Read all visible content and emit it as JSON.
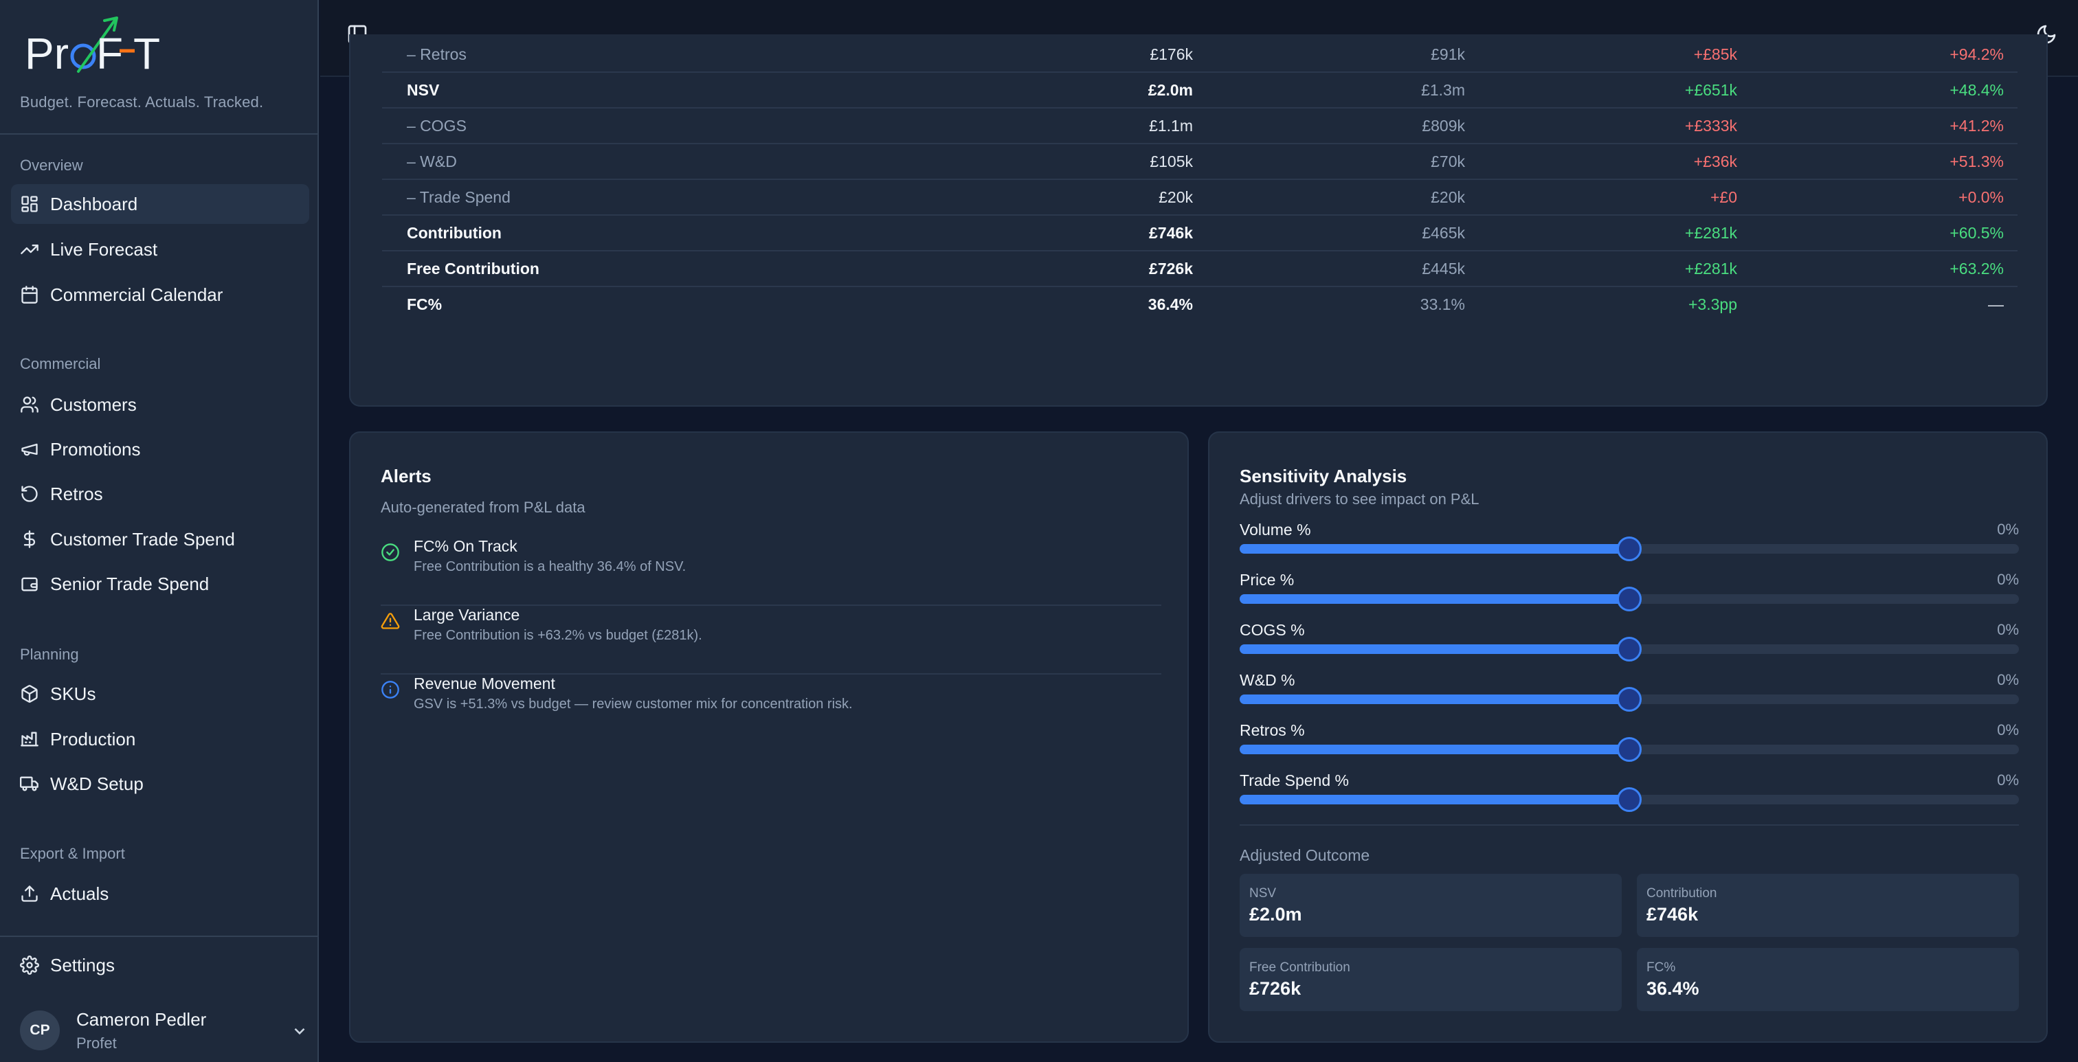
{
  "brand": {
    "tagline": "Budget. Forecast. Actuals. Tracked.",
    "colors": {
      "accent": "#3b82f6",
      "green": "#4ade80",
      "red": "#f87171",
      "orange": "#f59e0b"
    }
  },
  "sidebar": {
    "sections": [
      {
        "title": "Overview",
        "items": [
          {
            "label": "Dashboard",
            "icon": "dashboard-icon",
            "active": true
          },
          {
            "label": "Live Forecast",
            "icon": "trending-up-icon"
          },
          {
            "label": "Commercial Calendar",
            "icon": "calendar-icon"
          }
        ]
      },
      {
        "title": "Commercial",
        "items": [
          {
            "label": "Customers",
            "icon": "users-icon"
          },
          {
            "label": "Promotions",
            "icon": "megaphone-icon"
          },
          {
            "label": "Retros",
            "icon": "rotate-ccw-icon"
          },
          {
            "label": "Customer Trade Spend",
            "icon": "dollar-icon"
          },
          {
            "label": "Senior Trade Spend",
            "icon": "wallet-icon"
          }
        ]
      },
      {
        "title": "Planning",
        "items": [
          {
            "label": "SKUs",
            "icon": "package-icon"
          },
          {
            "label": "Production",
            "icon": "factory-icon"
          },
          {
            "label": "W&D Setup",
            "icon": "truck-icon"
          }
        ]
      },
      {
        "title": "Export & Import",
        "items": [
          {
            "label": "Actuals",
            "icon": "upload-icon"
          }
        ]
      }
    ],
    "settings": {
      "label": "Settings",
      "icon": "gear-icon"
    },
    "user": {
      "initials": "CP",
      "name": "Cameron Pedler",
      "org": "Profet"
    }
  },
  "pl_table": {
    "rows": [
      {
        "label": "– Retros",
        "actual": "£176k",
        "budget": "£91k",
        "var": "+£85k",
        "var_pct": "+94.2%",
        "bold": false,
        "color": "red"
      },
      {
        "label": "NSV",
        "actual": "£2.0m",
        "budget": "£1.3m",
        "var": "+£651k",
        "var_pct": "+48.4%",
        "bold": true,
        "color": "green"
      },
      {
        "label": "– COGS",
        "actual": "£1.1m",
        "budget": "£809k",
        "var": "+£333k",
        "var_pct": "+41.2%",
        "bold": false,
        "color": "red"
      },
      {
        "label": "– W&D",
        "actual": "£105k",
        "budget": "£70k",
        "var": "+£36k",
        "var_pct": "+51.3%",
        "bold": false,
        "color": "red"
      },
      {
        "label": "– Trade Spend",
        "actual": "£20k",
        "budget": "£20k",
        "var": "+£0",
        "var_pct": "+0.0%",
        "bold": false,
        "color": "red"
      },
      {
        "label": "Contribution",
        "actual": "£746k",
        "budget": "£465k",
        "var": "+£281k",
        "var_pct": "+60.5%",
        "bold": true,
        "color": "green"
      },
      {
        "label": "Free Contribution",
        "actual": "£726k",
        "budget": "£445k",
        "var": "+£281k",
        "var_pct": "+63.2%",
        "bold": true,
        "color": "green"
      },
      {
        "label": "FC%",
        "actual": "36.4%",
        "budget": "33.1%",
        "var": "+3.3pp",
        "var_pct": "—",
        "bold": true,
        "color": "green"
      }
    ]
  },
  "alerts": {
    "title": "Alerts",
    "subtitle": "Auto-generated from P&L data",
    "items": [
      {
        "icon": "check-circle-icon",
        "color": "#4ade80",
        "title": "FC% On Track",
        "desc": "Free Contribution is a healthy 36.4% of NSV."
      },
      {
        "icon": "warning-icon",
        "color": "#f59e0b",
        "title": "Large Variance",
        "desc": "Free Contribution is +63.2% vs budget (£281k)."
      },
      {
        "icon": "info-icon",
        "color": "#3b82f6",
        "title": "Revenue Movement",
        "desc": "GSV is +51.3% vs budget — review customer mix for concentration risk."
      }
    ]
  },
  "sensitivity": {
    "title": "Sensitivity Analysis",
    "subtitle": "Adjust drivers to see impact on P&L",
    "sliders": [
      {
        "label": "Volume %",
        "value": "0%",
        "position": 0.5
      },
      {
        "label": "Price %",
        "value": "0%",
        "position": 0.5
      },
      {
        "label": "COGS %",
        "value": "0%",
        "position": 0.5
      },
      {
        "label": "W&D %",
        "value": "0%",
        "position": 0.5
      },
      {
        "label": "Retros %",
        "value": "0%",
        "position": 0.5
      },
      {
        "label": "Trade Spend %",
        "value": "0%",
        "position": 0.5
      }
    ],
    "outcome_title": "Adjusted Outcome",
    "tiles": [
      {
        "label": "NSV",
        "value": "£2.0m"
      },
      {
        "label": "Contribution",
        "value": "£746k"
      },
      {
        "label": "Free Contribution",
        "value": "£726k"
      },
      {
        "label": "FC%",
        "value": "36.4%"
      }
    ]
  }
}
